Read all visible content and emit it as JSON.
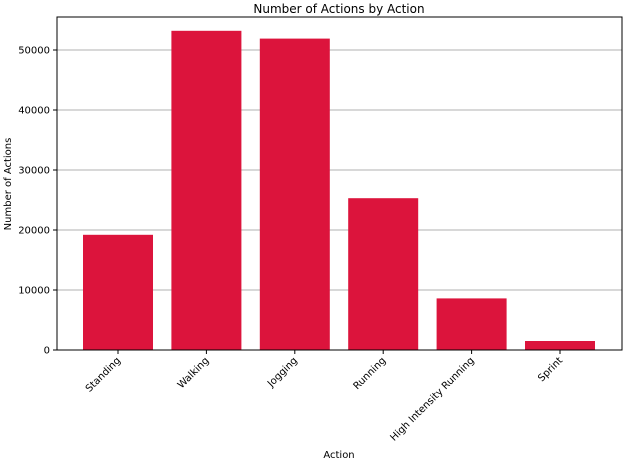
{
  "chart_data": {
    "type": "bar",
    "title": "Number of Actions by Action",
    "xlabel": "Action",
    "ylabel": "Number of Actions",
    "categories": [
      "Standing",
      "Walking",
      "Jogging",
      "Running",
      "High Intensity Running",
      "Sprint"
    ],
    "values": [
      19200,
      53200,
      51900,
      25300,
      8600,
      1500
    ],
    "ylim": [
      0,
      55500
    ],
    "yticks": [
      0,
      10000,
      20000,
      30000,
      40000,
      50000
    ],
    "ytick_labels": [
      "0",
      "10000",
      "20000",
      "30000",
      "40000",
      "50000"
    ],
    "grid": "horizontal",
    "bar_color": "#DC143C"
  }
}
